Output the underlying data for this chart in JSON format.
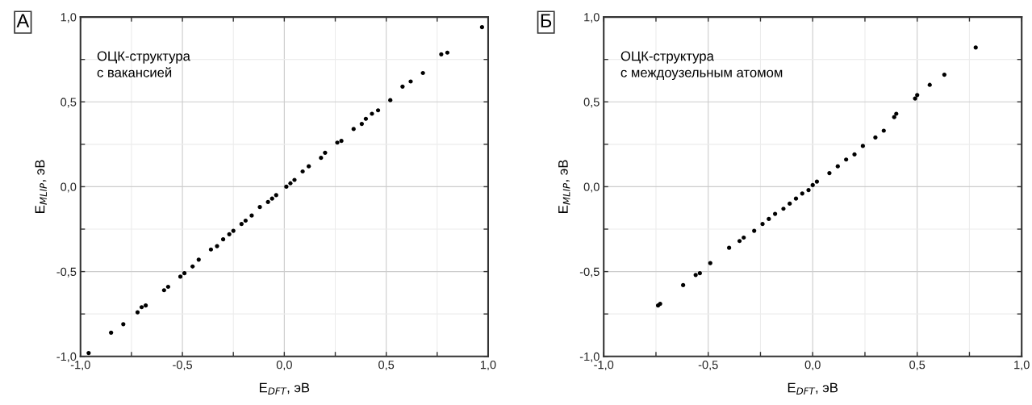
{
  "chart_data": [
    {
      "type": "scatter",
      "xlabel": "E$_{DFT}$, эВ",
      "ylabel": "E$_{MLIP}$, эВ",
      "annotations": [
        "А",
        "ОЦК-структура\nс вакансией"
      ],
      "x": [
        -0.96,
        -0.85,
        -0.79,
        -0.72,
        -0.7,
        -0.68,
        -0.59,
        -0.57,
        -0.51,
        -0.49,
        -0.45,
        -0.42,
        -0.36,
        -0.33,
        -0.3,
        -0.27,
        -0.25,
        -0.21,
        -0.19,
        -0.16,
        -0.12,
        -0.08,
        -0.06,
        -0.04,
        0.01,
        0.03,
        0.05,
        0.09,
        0.12,
        0.18,
        0.2,
        0.26,
        0.28,
        0.34,
        0.38,
        0.4,
        0.43,
        0.46,
        0.52,
        0.58,
        0.62,
        0.68,
        0.77,
        0.8,
        0.97
      ],
      "series": [
        {
          "color": "#000000",
          "values": [
            -0.98,
            -0.86,
            -0.81,
            -0.74,
            -0.71,
            -0.7,
            -0.61,
            -0.59,
            -0.53,
            -0.51,
            -0.47,
            -0.43,
            -0.37,
            -0.35,
            -0.31,
            -0.28,
            -0.26,
            -0.22,
            -0.2,
            -0.17,
            -0.12,
            -0.09,
            -0.07,
            -0.05,
            0.0,
            0.02,
            0.04,
            0.09,
            0.12,
            0.17,
            0.2,
            0.26,
            0.27,
            0.34,
            0.37,
            0.4,
            0.43,
            0.45,
            0.51,
            0.59,
            0.62,
            0.67,
            0.78,
            0.79,
            0.94
          ]
        }
      ],
      "xlim": [
        -1.0,
        1.0
      ],
      "ylim": [
        -1.0,
        1.0
      ],
      "xticks": [
        {
          "value": -1.0,
          "label": "-1,0"
        },
        {
          "value": -0.75,
          "label": null
        },
        {
          "value": -0.5,
          "label": "-0,5"
        },
        {
          "value": -0.25,
          "label": null
        },
        {
          "value": 0.0,
          "label": "0,0"
        },
        {
          "value": 0.25,
          "label": null
        },
        {
          "value": 0.5,
          "label": "0,5"
        },
        {
          "value": 0.75,
          "label": null
        },
        {
          "value": 1.0,
          "label": "1,0"
        }
      ],
      "yticks": [
        {
          "value": -1.0,
          "label": "-1,0"
        },
        {
          "value": -0.75,
          "label": null
        },
        {
          "value": -0.5,
          "label": "-0,5"
        },
        {
          "value": -0.25,
          "label": null
        },
        {
          "value": 0.0,
          "label": "0,0"
        },
        {
          "value": 0.25,
          "label": null
        },
        {
          "value": 0.5,
          "label": "0,5"
        },
        {
          "value": 0.75,
          "label": null
        },
        {
          "value": 1.0,
          "label": "1,0"
        }
      ],
      "grid": true,
      "marker": "circle",
      "legend": false
    },
    {
      "type": "scatter",
      "xlabel": "E$_{DFT}$, эВ",
      "ylabel": "E$_{MLIP}$, эВ",
      "annotations": [
        "Б",
        "ОЦК-структура\nс междоузельным атомом"
      ],
      "x": [
        -0.74,
        -0.73,
        -0.62,
        -0.56,
        -0.54,
        -0.49,
        -0.4,
        -0.35,
        -0.33,
        -0.28,
        -0.24,
        -0.21,
        -0.18,
        -0.14,
        -0.11,
        -0.08,
        -0.05,
        -0.02,
        0.0,
        0.02,
        0.08,
        0.12,
        0.16,
        0.2,
        0.24,
        0.3,
        0.34,
        0.39,
        0.4,
        0.49,
        0.5,
        0.56,
        0.63,
        0.78
      ],
      "series": [
        {
          "color": "#000000",
          "values": [
            -0.7,
            -0.69,
            -0.58,
            -0.52,
            -0.51,
            -0.45,
            -0.36,
            -0.32,
            -0.3,
            -0.26,
            -0.22,
            -0.19,
            -0.16,
            -0.13,
            -0.1,
            -0.07,
            -0.04,
            -0.02,
            0.01,
            0.03,
            0.08,
            0.12,
            0.16,
            0.19,
            0.24,
            0.29,
            0.33,
            0.41,
            0.43,
            0.52,
            0.54,
            0.6,
            0.66,
            0.82
          ]
        }
      ],
      "xlim": [
        -1.0,
        1.0
      ],
      "ylim": [
        -1.0,
        1.0
      ],
      "xticks": [
        {
          "value": -1.0,
          "label": "-1,0"
        },
        {
          "value": -0.75,
          "label": null
        },
        {
          "value": -0.5,
          "label": "-0,5"
        },
        {
          "value": -0.25,
          "label": null
        },
        {
          "value": 0.0,
          "label": "0,0"
        },
        {
          "value": 0.25,
          "label": null
        },
        {
          "value": 0.5,
          "label": "0,5"
        },
        {
          "value": 0.75,
          "label": null
        },
        {
          "value": 1.0,
          "label": "1,0"
        }
      ],
      "yticks": [
        {
          "value": -1.0,
          "label": "-1,0"
        },
        {
          "value": -0.75,
          "label": null
        },
        {
          "value": -0.5,
          "label": "-0,5"
        },
        {
          "value": -0.25,
          "label": null
        },
        {
          "value": 0.0,
          "label": "0,0"
        },
        {
          "value": 0.25,
          "label": null
        },
        {
          "value": 0.5,
          "label": "0,5"
        },
        {
          "value": 0.75,
          "label": null
        },
        {
          "value": 1.0,
          "label": "1,0"
        }
      ],
      "grid": true,
      "marker": "circle",
      "legend": false
    }
  ]
}
